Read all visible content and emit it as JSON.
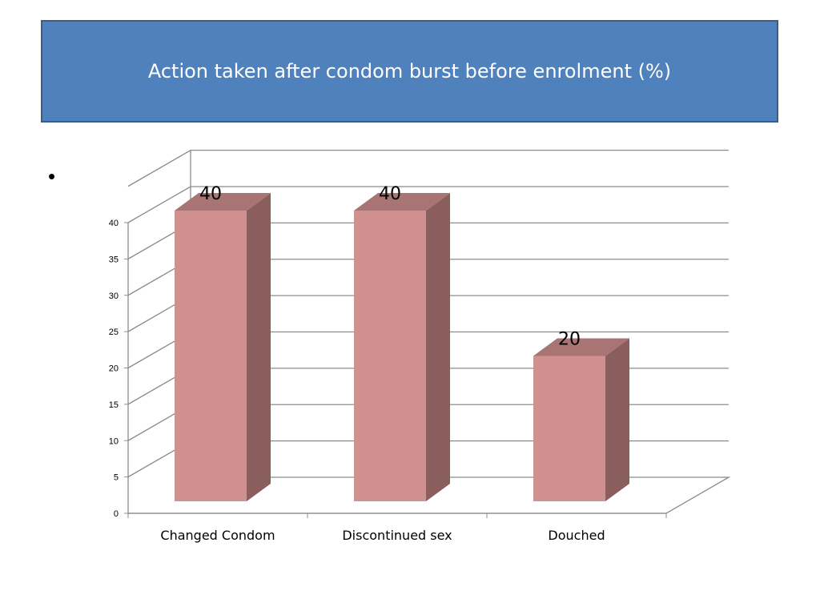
{
  "slide": {
    "title": "Action taken after condom burst before enrolment (%)",
    "bullet": "•"
  },
  "chart_data": {
    "type": "bar",
    "categories": [
      "Changed Condom",
      "Discontinued sex",
      "Douched"
    ],
    "values": [
      40,
      40,
      20
    ],
    "data_labels": [
      "40",
      "40",
      "20"
    ],
    "ylim": [
      0,
      40
    ],
    "yticks": [
      0,
      5,
      10,
      15,
      20,
      25,
      30,
      35,
      40
    ],
    "grid": true,
    "three_d": true,
    "colors": {
      "front": "#d09090",
      "side": "#8b5e5e",
      "top": "#a87474",
      "grid": "#8c8c8c"
    }
  }
}
